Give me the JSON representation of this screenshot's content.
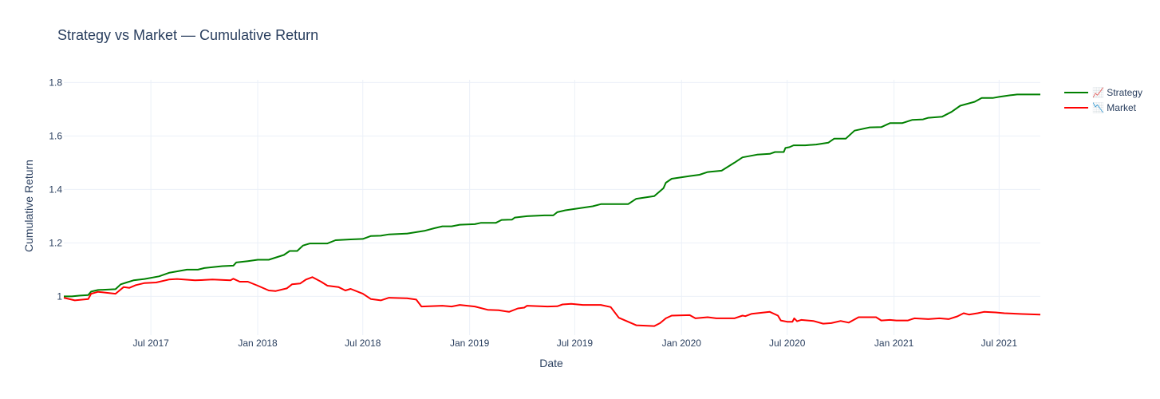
{
  "chart_data": {
    "type": "line",
    "title": "Strategy vs Market — Cumulative Return",
    "xlabel": "Date",
    "ylabel": "Cumulative Return",
    "x_range": [
      "2017-02-01",
      "2021-09-10"
    ],
    "y_range": [
      0.855,
      1.81
    ],
    "x_ticks": [
      {
        "date": "2017-07-01",
        "label": "Jul 2017"
      },
      {
        "date": "2018-01-01",
        "label": "Jan 2018"
      },
      {
        "date": "2018-07-01",
        "label": "Jul 2018"
      },
      {
        "date": "2019-01-01",
        "label": "Jan 2019"
      },
      {
        "date": "2019-07-01",
        "label": "Jul 2019"
      },
      {
        "date": "2020-01-01",
        "label": "Jan 2020"
      },
      {
        "date": "2020-07-01",
        "label": "Jul 2020"
      },
      {
        "date": "2021-01-01",
        "label": "Jan 2021"
      },
      {
        "date": "2021-07-01",
        "label": "Jul 2021"
      }
    ],
    "y_ticks": [
      {
        "value": 1.0,
        "label": "1"
      },
      {
        "value": 1.2,
        "label": "1.2"
      },
      {
        "value": 1.4,
        "label": "1.4"
      },
      {
        "value": 1.6,
        "label": "1.6"
      },
      {
        "value": 1.8,
        "label": "1.8"
      }
    ],
    "grid": true,
    "legend_position": "top-right",
    "series": [
      {
        "name": "📈 Strategy",
        "color": "#008000",
        "points": [
          [
            "2017-02-01",
            1.0
          ],
          [
            "2017-02-15",
            1.0
          ],
          [
            "2017-03-01",
            1.003
          ],
          [
            "2017-03-15",
            1.005
          ],
          [
            "2017-03-20",
            1.018
          ],
          [
            "2017-04-01",
            1.024
          ],
          [
            "2017-05-01",
            1.027
          ],
          [
            "2017-05-10",
            1.045
          ],
          [
            "2017-05-20",
            1.052
          ],
          [
            "2017-06-01",
            1.06
          ],
          [
            "2017-06-20",
            1.065
          ],
          [
            "2017-07-15",
            1.075
          ],
          [
            "2017-08-01",
            1.088
          ],
          [
            "2017-09-01",
            1.1
          ],
          [
            "2017-09-20",
            1.1
          ],
          [
            "2017-10-01",
            1.106
          ],
          [
            "2017-11-01",
            1.113
          ],
          [
            "2017-11-20",
            1.115
          ],
          [
            "2017-11-25",
            1.127
          ],
          [
            "2017-12-15",
            1.132
          ],
          [
            "2018-01-01",
            1.137
          ],
          [
            "2018-01-20",
            1.137
          ],
          [
            "2018-02-15",
            1.155
          ],
          [
            "2018-02-25",
            1.17
          ],
          [
            "2018-03-10",
            1.17
          ],
          [
            "2018-03-20",
            1.19
          ],
          [
            "2018-04-01",
            1.198
          ],
          [
            "2018-05-01",
            1.198
          ],
          [
            "2018-05-15",
            1.21
          ],
          [
            "2018-06-10",
            1.213
          ],
          [
            "2018-07-01",
            1.215
          ],
          [
            "2018-07-15",
            1.226
          ],
          [
            "2018-08-01",
            1.227
          ],
          [
            "2018-08-15",
            1.232
          ],
          [
            "2018-09-15",
            1.235
          ],
          [
            "2018-10-15",
            1.245
          ],
          [
            "2018-11-01",
            1.255
          ],
          [
            "2018-11-15",
            1.262
          ],
          [
            "2018-12-01",
            1.262
          ],
          [
            "2018-12-15",
            1.268
          ],
          [
            "2019-01-10",
            1.27
          ],
          [
            "2019-01-20",
            1.275
          ],
          [
            "2019-02-15",
            1.275
          ],
          [
            "2019-02-25",
            1.286
          ],
          [
            "2019-03-15",
            1.287
          ],
          [
            "2019-03-20",
            1.295
          ],
          [
            "2019-04-10",
            1.3
          ],
          [
            "2019-05-10",
            1.303
          ],
          [
            "2019-05-25",
            1.303
          ],
          [
            "2019-06-01",
            1.315
          ],
          [
            "2019-06-15",
            1.322
          ],
          [
            "2019-08-01",
            1.337
          ],
          [
            "2019-08-15",
            1.345
          ],
          [
            "2019-09-01",
            1.345
          ],
          [
            "2019-10-01",
            1.345
          ],
          [
            "2019-10-15",
            1.365
          ],
          [
            "2019-11-15",
            1.375
          ],
          [
            "2019-12-01",
            1.405
          ],
          [
            "2019-12-05",
            1.425
          ],
          [
            "2019-12-15",
            1.44
          ],
          [
            "2020-01-15",
            1.45
          ],
          [
            "2020-02-01",
            1.455
          ],
          [
            "2020-02-15",
            1.465
          ],
          [
            "2020-03-10",
            1.47
          ],
          [
            "2020-04-01",
            1.5
          ],
          [
            "2020-04-15",
            1.52
          ],
          [
            "2020-05-10",
            1.53
          ],
          [
            "2020-06-01",
            1.533
          ],
          [
            "2020-06-10",
            1.54
          ],
          [
            "2020-06-25",
            1.54
          ],
          [
            "2020-06-28",
            1.555
          ],
          [
            "2020-07-05",
            1.558
          ],
          [
            "2020-07-12",
            1.565
          ],
          [
            "2020-08-01",
            1.565
          ],
          [
            "2020-08-20",
            1.568
          ],
          [
            "2020-09-10",
            1.575
          ],
          [
            "2020-09-20",
            1.59
          ],
          [
            "2020-10-10",
            1.59
          ],
          [
            "2020-10-25",
            1.62
          ],
          [
            "2020-11-20",
            1.632
          ],
          [
            "2020-12-10",
            1.633
          ],
          [
            "2020-12-25",
            1.648
          ],
          [
            "2021-01-15",
            1.648
          ],
          [
            "2021-02-01",
            1.66
          ],
          [
            "2021-02-20",
            1.662
          ],
          [
            "2021-03-01",
            1.668
          ],
          [
            "2021-03-25",
            1.672
          ],
          [
            "2021-04-10",
            1.69
          ],
          [
            "2021-04-25",
            1.713
          ],
          [
            "2021-05-20",
            1.728
          ],
          [
            "2021-06-01",
            1.742
          ],
          [
            "2021-06-20",
            1.742
          ],
          [
            "2021-07-01",
            1.746
          ],
          [
            "2021-07-20",
            1.752
          ],
          [
            "2021-08-01",
            1.755
          ],
          [
            "2021-09-10",
            1.755
          ]
        ]
      },
      {
        "name": "📉 Market",
        "color": "#ff0000",
        "points": [
          [
            "2017-02-01",
            0.995
          ],
          [
            "2017-02-20",
            0.985
          ],
          [
            "2017-03-15",
            0.99
          ],
          [
            "2017-03-20",
            1.01
          ],
          [
            "2017-04-01",
            1.017
          ],
          [
            "2017-05-01",
            1.01
          ],
          [
            "2017-05-15",
            1.035
          ],
          [
            "2017-05-25",
            1.032
          ],
          [
            "2017-06-05",
            1.042
          ],
          [
            "2017-06-20",
            1.05
          ],
          [
            "2017-07-10",
            1.052
          ],
          [
            "2017-08-01",
            1.063
          ],
          [
            "2017-08-15",
            1.065
          ],
          [
            "2017-09-15",
            1.06
          ],
          [
            "2017-10-15",
            1.063
          ],
          [
            "2017-11-15",
            1.06
          ],
          [
            "2017-11-20",
            1.066
          ],
          [
            "2017-12-01",
            1.055
          ],
          [
            "2017-12-15",
            1.055
          ],
          [
            "2018-01-01",
            1.04
          ],
          [
            "2018-01-20",
            1.022
          ],
          [
            "2018-02-01",
            1.02
          ],
          [
            "2018-02-20",
            1.03
          ],
          [
            "2018-03-01",
            1.045
          ],
          [
            "2018-03-15",
            1.048
          ],
          [
            "2018-03-25",
            1.063
          ],
          [
            "2018-04-05",
            1.072
          ],
          [
            "2018-04-20",
            1.055
          ],
          [
            "2018-05-01",
            1.04
          ],
          [
            "2018-05-20",
            1.035
          ],
          [
            "2018-06-01",
            1.022
          ],
          [
            "2018-06-10",
            1.028
          ],
          [
            "2018-07-01",
            1.01
          ],
          [
            "2018-07-15",
            0.99
          ],
          [
            "2018-08-01",
            0.985
          ],
          [
            "2018-08-15",
            0.995
          ],
          [
            "2018-09-15",
            0.993
          ],
          [
            "2018-10-01",
            0.988
          ],
          [
            "2018-10-10",
            0.962
          ],
          [
            "2018-11-15",
            0.965
          ],
          [
            "2018-12-01",
            0.962
          ],
          [
            "2018-12-15",
            0.968
          ],
          [
            "2019-01-10",
            0.962
          ],
          [
            "2019-02-01",
            0.95
          ],
          [
            "2019-02-20",
            0.948
          ],
          [
            "2019-03-10",
            0.942
          ],
          [
            "2019-03-25",
            0.955
          ],
          [
            "2019-04-05",
            0.958
          ],
          [
            "2019-04-10",
            0.965
          ],
          [
            "2019-05-15",
            0.962
          ],
          [
            "2019-06-01",
            0.963
          ],
          [
            "2019-06-10",
            0.97
          ],
          [
            "2019-06-25",
            0.972
          ],
          [
            "2019-07-15",
            0.968
          ],
          [
            "2019-08-15",
            0.968
          ],
          [
            "2019-09-01",
            0.96
          ],
          [
            "2019-09-15",
            0.92
          ],
          [
            "2019-10-15",
            0.892
          ],
          [
            "2019-11-15",
            0.889
          ],
          [
            "2019-11-25",
            0.9
          ],
          [
            "2019-12-05",
            0.918
          ],
          [
            "2019-12-15",
            0.928
          ],
          [
            "2020-01-15",
            0.93
          ],
          [
            "2020-01-25",
            0.918
          ],
          [
            "2020-02-15",
            0.922
          ],
          [
            "2020-03-01",
            0.918
          ],
          [
            "2020-04-01",
            0.918
          ],
          [
            "2020-04-15",
            0.928
          ],
          [
            "2020-04-20",
            0.926
          ],
          [
            "2020-05-01",
            0.935
          ],
          [
            "2020-06-01",
            0.942
          ],
          [
            "2020-06-15",
            0.928
          ],
          [
            "2020-06-20",
            0.91
          ],
          [
            "2020-07-01",
            0.905
          ],
          [
            "2020-07-10",
            0.905
          ],
          [
            "2020-07-13",
            0.918
          ],
          [
            "2020-07-18",
            0.907
          ],
          [
            "2020-07-25",
            0.912
          ],
          [
            "2020-08-15",
            0.908
          ],
          [
            "2020-09-01",
            0.898
          ],
          [
            "2020-09-15",
            0.9
          ],
          [
            "2020-10-01",
            0.908
          ],
          [
            "2020-10-15",
            0.902
          ],
          [
            "2020-11-01",
            0.922
          ],
          [
            "2020-12-01",
            0.922
          ],
          [
            "2020-12-10",
            0.91
          ],
          [
            "2020-12-25",
            0.912
          ],
          [
            "2021-01-05",
            0.91
          ],
          [
            "2021-01-25",
            0.91
          ],
          [
            "2021-02-05",
            0.918
          ],
          [
            "2021-03-01",
            0.915
          ],
          [
            "2021-03-20",
            0.918
          ],
          [
            "2021-04-05",
            0.915
          ],
          [
            "2021-04-20",
            0.925
          ],
          [
            "2021-05-01",
            0.937
          ],
          [
            "2021-05-10",
            0.932
          ],
          [
            "2021-05-25",
            0.937
          ],
          [
            "2021-06-05",
            0.942
          ],
          [
            "2021-06-25",
            0.94
          ],
          [
            "2021-07-10",
            0.937
          ],
          [
            "2021-08-10",
            0.934
          ],
          [
            "2021-09-10",
            0.932
          ]
        ]
      }
    ]
  }
}
